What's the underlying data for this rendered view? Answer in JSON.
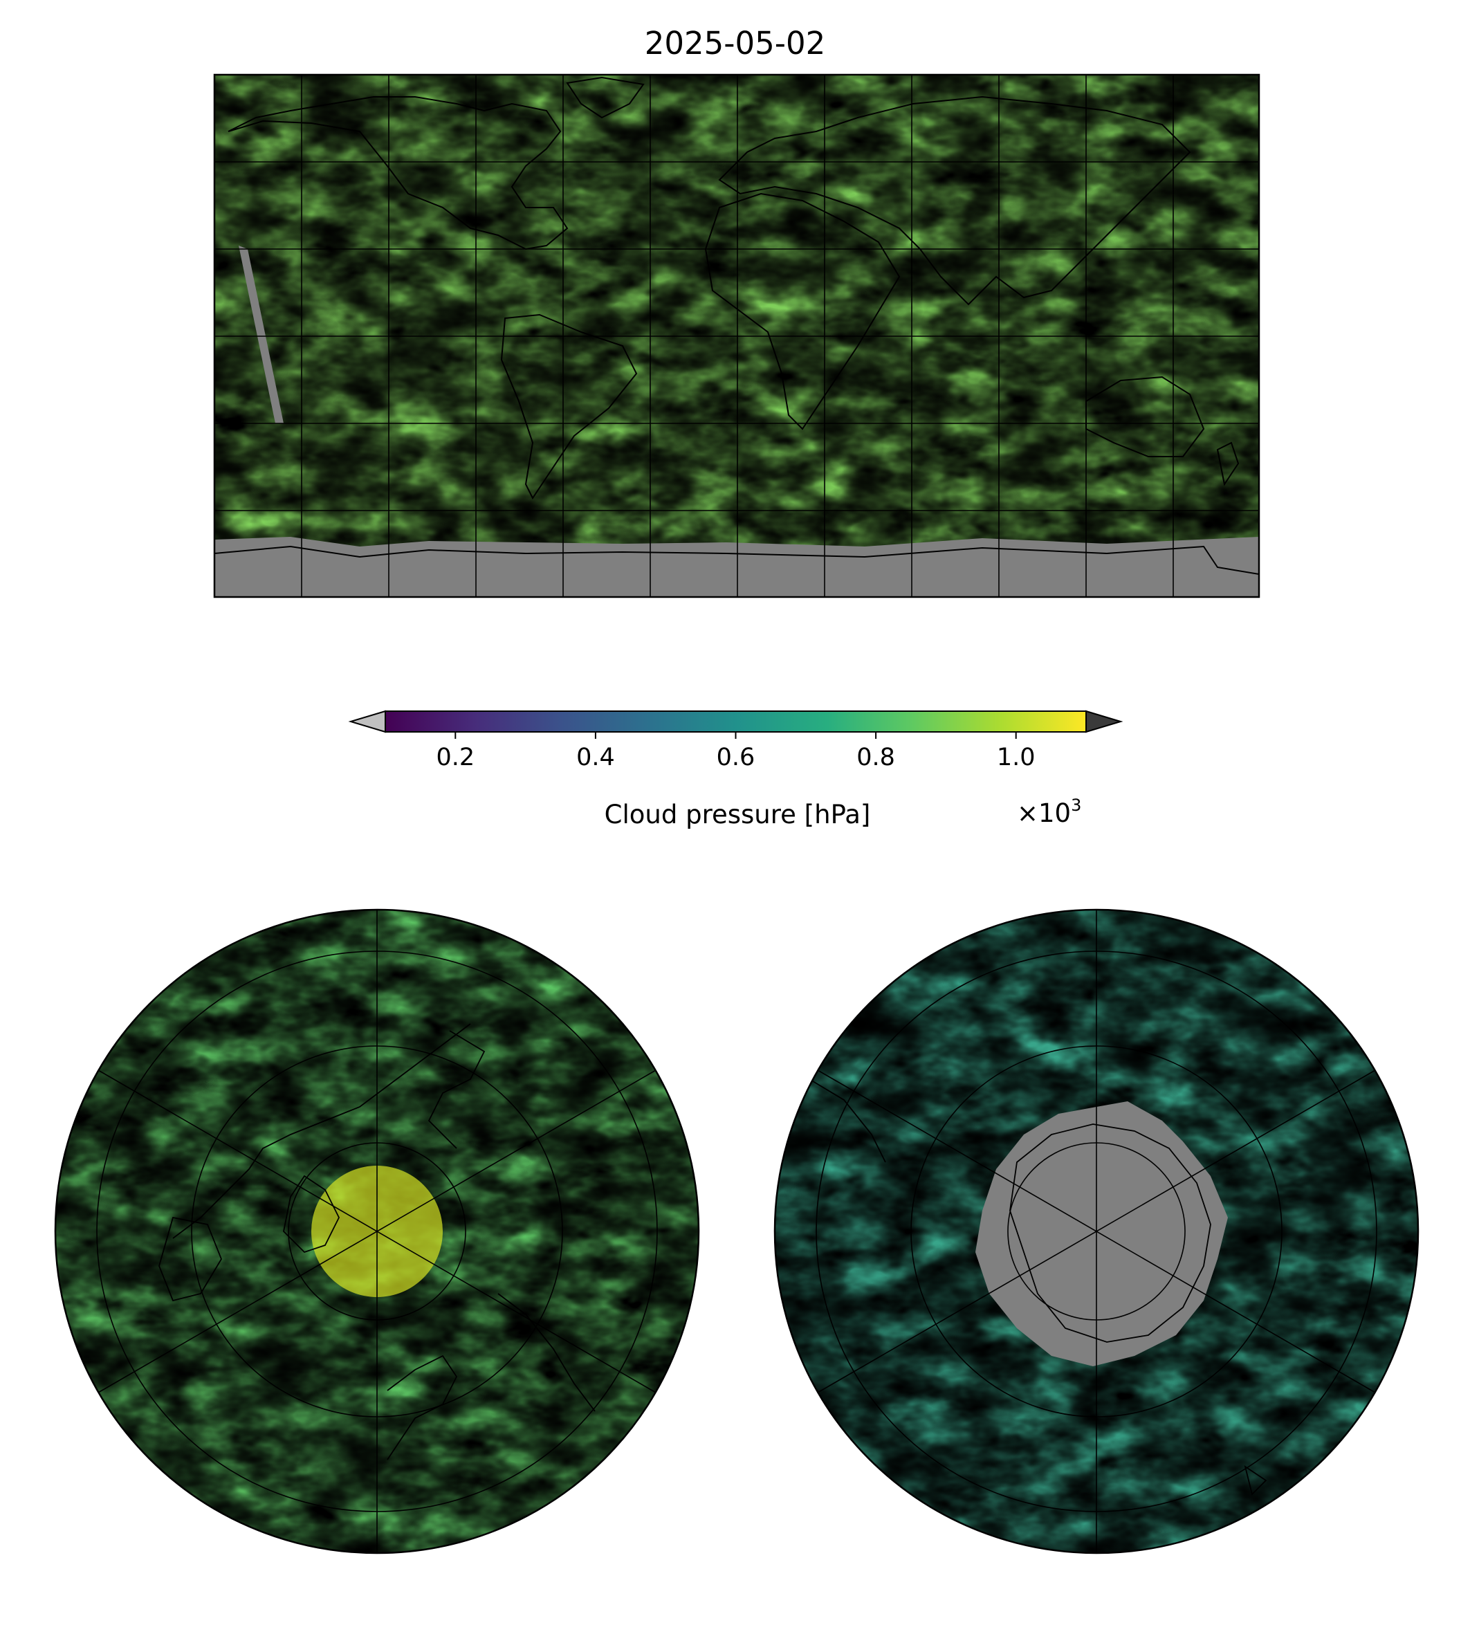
{
  "figure": {
    "title": "2025-05-02"
  },
  "colorbar": {
    "label": "Cloud pressure [hPa]",
    "multiplier_base": "×10",
    "multiplier_exp": "3",
    "ticks": [
      {
        "value": 0.2,
        "label": "0.2"
      },
      {
        "value": 0.4,
        "label": "0.4"
      },
      {
        "value": 0.6,
        "label": "0.6"
      },
      {
        "value": 0.8,
        "label": "0.8"
      },
      {
        "value": 1.0,
        "label": "1.0"
      }
    ],
    "range_x1000": [
      0.1,
      1.1
    ],
    "extend": "both",
    "under_color": "#c0c0c0",
    "over_color": "#3a3a3a",
    "colormap": [
      "#440154",
      "#3b528b",
      "#21918c",
      "#5ec962",
      "#b8de29",
      "#fde725"
    ]
  },
  "maps": [
    {
      "name": "global-map",
      "projection": "equirectangular",
      "extent_lon": [
        -180,
        180
      ],
      "extent_lat": [
        -90,
        90
      ],
      "gridlines_deg": 30,
      "missing_color": "#808080"
    },
    {
      "name": "north-polar-map",
      "projection": "north polar stereographic",
      "missing_color": "#808080"
    },
    {
      "name": "south-polar-map",
      "projection": "south polar stereographic",
      "missing_color": "#808080"
    }
  ]
}
